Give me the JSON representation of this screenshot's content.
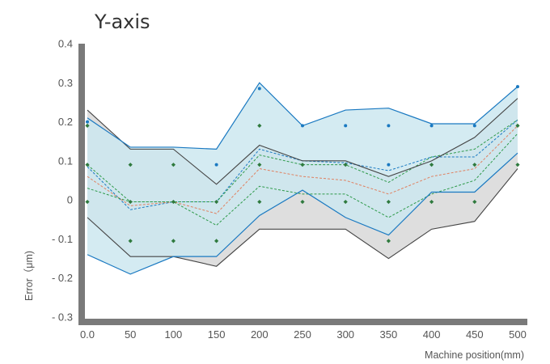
{
  "chart_data": {
    "type": "line",
    "title": "Y-axis",
    "xlabel": "Machine position(mm)",
    "ylabel": "Error（μm)",
    "xlim": [
      0,
      500
    ],
    "ylim": [
      -0.3,
      0.4
    ],
    "x_ticks": [
      "0.0",
      "50",
      "100",
      "150",
      "200",
      "250",
      "300",
      "350",
      "400",
      "450",
      "500"
    ],
    "y_ticks": [
      "0.4",
      "0.3",
      "0.2",
      "0.1",
      "0",
      "- 0.1",
      "- 0.2",
      "- 0.3"
    ],
    "x": [
      0,
      50,
      100,
      150,
      200,
      250,
      300,
      350,
      400,
      450,
      500
    ],
    "colors": {
      "blue": "#1a79c1",
      "blue_fill": "#cde8f0",
      "gray": "#444444",
      "gray_fill": "#dedede",
      "green": "#2e9a4a",
      "orange": "#e08060",
      "marker_green": "#2f7a3e",
      "axis": "#7a7a7a"
    },
    "bands": [
      {
        "upper": [
          0.21,
          0.135,
          0.135,
          0.13,
          0.3,
          0.19,
          0.23,
          0.235,
          0.195,
          0.195,
          0.29
        ],
        "lower": [
          -0.14,
          -0.19,
          -0.145,
          -0.145,
          -0.04,
          0.025,
          -0.045,
          -0.09,
          0.02,
          0.02,
          0.12
        ]
      },
      {
        "upper": [
          0.23,
          0.13,
          0.13,
          0.04,
          0.14,
          0.1,
          0.1,
          0.06,
          0.1,
          0.16,
          0.26
        ],
        "lower": [
          -0.045,
          -0.145,
          -0.145,
          -0.17,
          -0.075,
          -0.075,
          -0.075,
          -0.15,
          -0.075,
          -0.055,
          0.08
        ]
      }
    ],
    "dashed_lines": [
      {
        "color": "blue",
        "values": [
          0.085,
          -0.025,
          -0.005,
          -0.005,
          0.13,
          0.1,
          0.095,
          0.075,
          0.11,
          0.11,
          0.205
        ]
      },
      {
        "color": "orange",
        "values": [
          0.06,
          -0.015,
          -0.005,
          -0.035,
          0.08,
          0.06,
          0.05,
          0.015,
          0.06,
          0.08,
          0.19
        ]
      },
      {
        "color": "green",
        "values": [
          0.09,
          -0.005,
          -0.005,
          -0.005,
          0.115,
          0.09,
          0.09,
          0.045,
          0.11,
          0.13,
          0.205
        ]
      },
      {
        "color": "green",
        "values": [
          0.03,
          -0.005,
          -0.005,
          -0.065,
          0.035,
          0.015,
          0.015,
          -0.045,
          0.015,
          0.05,
          0.17
        ]
      }
    ],
    "markers_blue": [
      [
        0,
        0.2
      ],
      [
        150,
        0.09
      ],
      [
        200,
        0.285
      ],
      [
        250,
        0.19
      ],
      [
        300,
        0.19
      ],
      [
        350,
        0.19
      ],
      [
        350,
        0.09
      ],
      [
        400,
        0.19
      ],
      [
        450,
        0.19
      ],
      [
        500,
        0.29
      ]
    ],
    "markers_green": [
      [
        0,
        0.19
      ],
      [
        0,
        0.09
      ],
      [
        0,
        -0.005
      ],
      [
        50,
        0.09
      ],
      [
        50,
        -0.005
      ],
      [
        50,
        -0.105
      ],
      [
        100,
        0.09
      ],
      [
        100,
        -0.005
      ],
      [
        100,
        -0.105
      ],
      [
        150,
        -0.005
      ],
      [
        150,
        -0.105
      ],
      [
        200,
        0.19
      ],
      [
        200,
        0.09
      ],
      [
        200,
        -0.005
      ],
      [
        250,
        0.09
      ],
      [
        250,
        -0.005
      ],
      [
        300,
        0.09
      ],
      [
        300,
        -0.005
      ],
      [
        350,
        -0.005
      ],
      [
        350,
        -0.105
      ],
      [
        400,
        0.09
      ],
      [
        400,
        -0.005
      ],
      [
        450,
        0.09
      ],
      [
        450,
        -0.005
      ],
      [
        500,
        0.19
      ],
      [
        500,
        0.09
      ]
    ]
  }
}
